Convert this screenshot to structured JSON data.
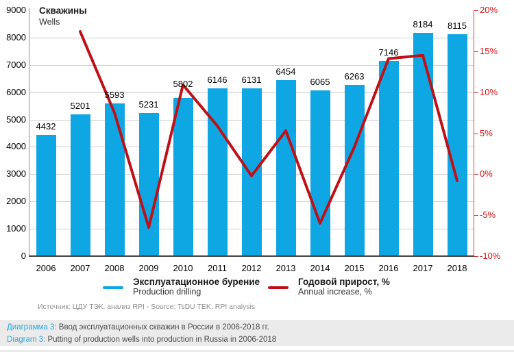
{
  "chart_data": {
    "type": "bar",
    "title_ru": "Скважины",
    "title_en": "Wells",
    "categories": [
      "2006",
      "2007",
      "2008",
      "2009",
      "2010",
      "2011",
      "2012",
      "2013",
      "2014",
      "2015",
      "2016",
      "2017",
      "2018"
    ],
    "series": [
      {
        "name_ru": "Эксплуатационное бурение",
        "name_en": "Production drilling",
        "type": "bar",
        "axis": "left",
        "color": "#0fa7e3",
        "values": [
          4432,
          5201,
          5593,
          5231,
          5802,
          6146,
          6131,
          6454,
          6065,
          6263,
          7146,
          8184,
          8115
        ]
      },
      {
        "name_ru": "Годовой прирост, %",
        "name_en": "Annual increase, %",
        "type": "line",
        "axis": "right",
        "color": "#be1117",
        "values": [
          null,
          17.4,
          7.5,
          -6.5,
          10.9,
          5.9,
          -0.2,
          5.3,
          -6.0,
          3.3,
          14.1,
          14.5,
          -0.8
        ]
      }
    ],
    "left_axis": {
      "min": 0,
      "max": 9000,
      "step": 1000
    },
    "right_axis": {
      "min": -10,
      "max": 20,
      "step": 5,
      "labels": [
        "20%",
        "15%",
        "10%",
        "5%",
        "0%",
        "-5%",
        "-10%"
      ]
    },
    "grid": true,
    "legend_position": "bottom",
    "bar_value_labels": true
  },
  "source": {
    "text": "Источник: ЦДУ ТЭК, анализ RPI - Source: TsDU TEK, RPI analysis"
  },
  "caption": {
    "label_ru": "Диаграмма 3:",
    "text_ru": "Ввод эксплуатационных скважин в России в 2006-2018 гг.",
    "label_en": "Diagram 3:",
    "text_en": "Putting of production wells into production in Russia in 2006-2018"
  },
  "colors": {
    "bar": "#0fa7e3",
    "line": "#be1117",
    "right_axis_labels": "#d01217",
    "accent_cyan": "#29a9dc",
    "caption_background": "#ebebeb"
  }
}
